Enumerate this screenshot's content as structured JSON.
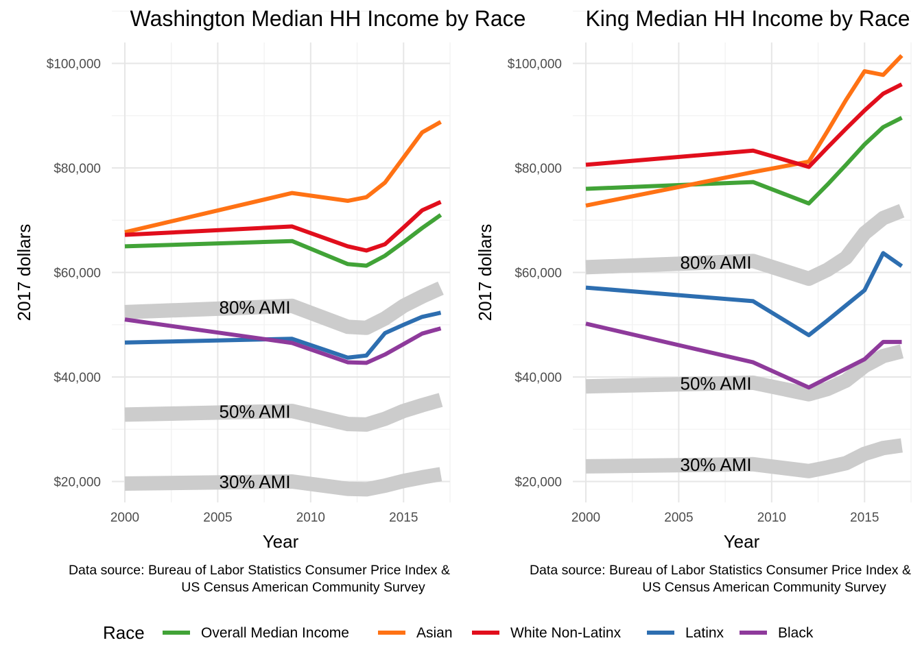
{
  "chart_data": [
    {
      "type": "line",
      "title": "Washington Median HH Income by Race",
      "xlabel": "Year",
      "ylabel": "2017 dollars",
      "xlim": [
        1999.3,
        2017.5
      ],
      "ylim": [
        16000,
        104000
      ],
      "x_ticks": [
        2000,
        2005,
        2010,
        2015
      ],
      "x_tick_labels": [
        "2000",
        "2005",
        "2010",
        "2015"
      ],
      "y_ticks": [
        20000,
        40000,
        60000,
        80000,
        100000
      ],
      "y_tick_labels": [
        "$20,000",
        "$40,000",
        "$60,000",
        "$80,000",
        "$100,000"
      ],
      "grid": true,
      "caption": [
        "Data source: Bureau of Labor Statistics Consumer Price Index &",
        "US Census American Community Survey"
      ],
      "ami_bands": [
        {
          "label": "80% AMI",
          "label_x": 2007,
          "x": [
            2000,
            2009,
            2012,
            2013,
            2014,
            2015,
            2016,
            2017
          ],
          "y": [
            52400,
            53600,
            49600,
            49400,
            51200,
            53600,
            55400,
            57000
          ]
        },
        {
          "label": "50% AMI",
          "label_x": 2007,
          "x": [
            2000,
            2009,
            2012,
            2013,
            2014,
            2015,
            2016,
            2017
          ],
          "y": [
            32800,
            33500,
            31000,
            30900,
            32000,
            33500,
            34600,
            35600
          ]
        },
        {
          "label": "30% AMI",
          "label_x": 2007,
          "x": [
            2000,
            2009,
            2012,
            2013,
            2014,
            2015,
            2016,
            2017
          ],
          "y": [
            19600,
            20000,
            18600,
            18500,
            19200,
            20100,
            20800,
            21400
          ]
        }
      ],
      "series": [
        {
          "name": "Overall Median Income",
          "color": "#41a337",
          "x": [
            2000,
            2009,
            2012,
            2013,
            2014,
            2015,
            2016,
            2017
          ],
          "y": [
            65000,
            66000,
            61600,
            61300,
            63200,
            65800,
            68500,
            71000
          ]
        },
        {
          "name": "Asian",
          "color": "#ff7214",
          "x": [
            2000,
            2009,
            2012,
            2013,
            2014,
            2015,
            2016,
            2017
          ],
          "y": [
            67700,
            75200,
            73700,
            74400,
            77200,
            82000,
            86800,
            88800
          ]
        },
        {
          "name": "White Non-Latinx",
          "color": "#e10e1c",
          "x": [
            2000,
            2009,
            2012,
            2013,
            2014,
            2015,
            2016,
            2017
          ],
          "y": [
            67200,
            68800,
            65000,
            64200,
            65400,
            68600,
            71900,
            73500
          ]
        },
        {
          "name": "Latinx",
          "color": "#2d6eb0",
          "x": [
            2000,
            2009,
            2012,
            2013,
            2014,
            2015,
            2016,
            2017
          ],
          "y": [
            46600,
            47300,
            43700,
            44100,
            48400,
            50000,
            51500,
            52300
          ]
        },
        {
          "name": "Black",
          "color": "#8e3a9b",
          "x": [
            2000,
            2009,
            2012,
            2013,
            2014,
            2015,
            2016,
            2017
          ],
          "y": [
            51000,
            46500,
            42800,
            42700,
            44300,
            46300,
            48300,
            49300
          ]
        }
      ]
    },
    {
      "type": "line",
      "title": "King Median HH Income by Race",
      "xlabel": "Year",
      "ylabel": "2017 dollars",
      "xlim": [
        1999.3,
        2017.5
      ],
      "ylim": [
        16000,
        104000
      ],
      "x_ticks": [
        2000,
        2005,
        2010,
        2015
      ],
      "x_tick_labels": [
        "2000",
        "2005",
        "2010",
        "2015"
      ],
      "y_ticks": [
        20000,
        40000,
        60000,
        80000,
        100000
      ],
      "y_tick_labels": [
        "$20,000",
        "$40,000",
        "$60,000",
        "$80,000",
        "$100,000"
      ],
      "grid": true,
      "caption": [
        "Data source: Bureau of Labor Statistics Consumer Price Index &",
        "US Census American Community Survey"
      ],
      "ami_bands": [
        {
          "label": "80% AMI",
          "label_x": 2007,
          "x": [
            2000,
            2009,
            2012,
            2013,
            2014,
            2015,
            2016,
            2017
          ],
          "y": [
            61000,
            62200,
            58800,
            60500,
            62800,
            67500,
            70400,
            71800
          ]
        },
        {
          "label": "50% AMI",
          "label_x": 2007,
          "x": [
            2000,
            2009,
            2012,
            2013,
            2014,
            2015,
            2016,
            2017
          ],
          "y": [
            38200,
            38900,
            36700,
            37700,
            39300,
            42100,
            44000,
            44900
          ]
        },
        {
          "label": "30% AMI",
          "label_x": 2007,
          "x": [
            2000,
            2009,
            2012,
            2013,
            2014,
            2015,
            2016,
            2017
          ],
          "y": [
            22900,
            23300,
            22000,
            22700,
            23500,
            25300,
            26400,
            26900
          ]
        }
      ],
      "series": [
        {
          "name": "Overall Median Income",
          "color": "#41a337",
          "x": [
            2000,
            2009,
            2012,
            2013,
            2014,
            2015,
            2016,
            2017
          ],
          "y": [
            76000,
            77300,
            73200,
            76800,
            80600,
            84500,
            87800,
            89600
          ]
        },
        {
          "name": "Asian",
          "color": "#ff7214",
          "x": [
            2000,
            2009,
            2012,
            2013,
            2014,
            2015,
            2016,
            2017
          ],
          "y": [
            72800,
            79200,
            81200,
            87000,
            93000,
            98500,
            97800,
            101500
          ]
        },
        {
          "name": "White Non-Latinx",
          "color": "#e10e1c",
          "x": [
            2000,
            2009,
            2012,
            2013,
            2014,
            2015,
            2016,
            2017
          ],
          "y": [
            80600,
            83300,
            80200,
            83900,
            87500,
            91000,
            94200,
            96000
          ]
        },
        {
          "name": "Latinx",
          "color": "#2d6eb0",
          "x": [
            2000,
            2009,
            2012,
            2013,
            2014,
            2015,
            2016,
            2017
          ],
          "y": [
            57100,
            54500,
            48000,
            50800,
            53700,
            56600,
            63700,
            61200
          ]
        },
        {
          "name": "Black",
          "color": "#8e3a9b",
          "x": [
            2000,
            2009,
            2012,
            2013,
            2014,
            2015,
            2016,
            2017
          ],
          "y": [
            50200,
            42800,
            38000,
            39800,
            41600,
            43400,
            46700,
            46700
          ]
        }
      ]
    }
  ],
  "legend": {
    "title": "Race",
    "position": "bottom",
    "items": [
      {
        "label": "Overall Median Income",
        "color": "#41a337"
      },
      {
        "label": "Asian",
        "color": "#ff7214"
      },
      {
        "label": "White Non-Latinx",
        "color": "#e10e1c"
      },
      {
        "label": "Latinx",
        "color": "#2d6eb0"
      },
      {
        "label": "Black",
        "color": "#8e3a9b"
      }
    ]
  },
  "style": {
    "band_color": "#cccccc",
    "grid_major_color": "#e6e6e6",
    "grid_minor_color": "#f2f2f2"
  }
}
